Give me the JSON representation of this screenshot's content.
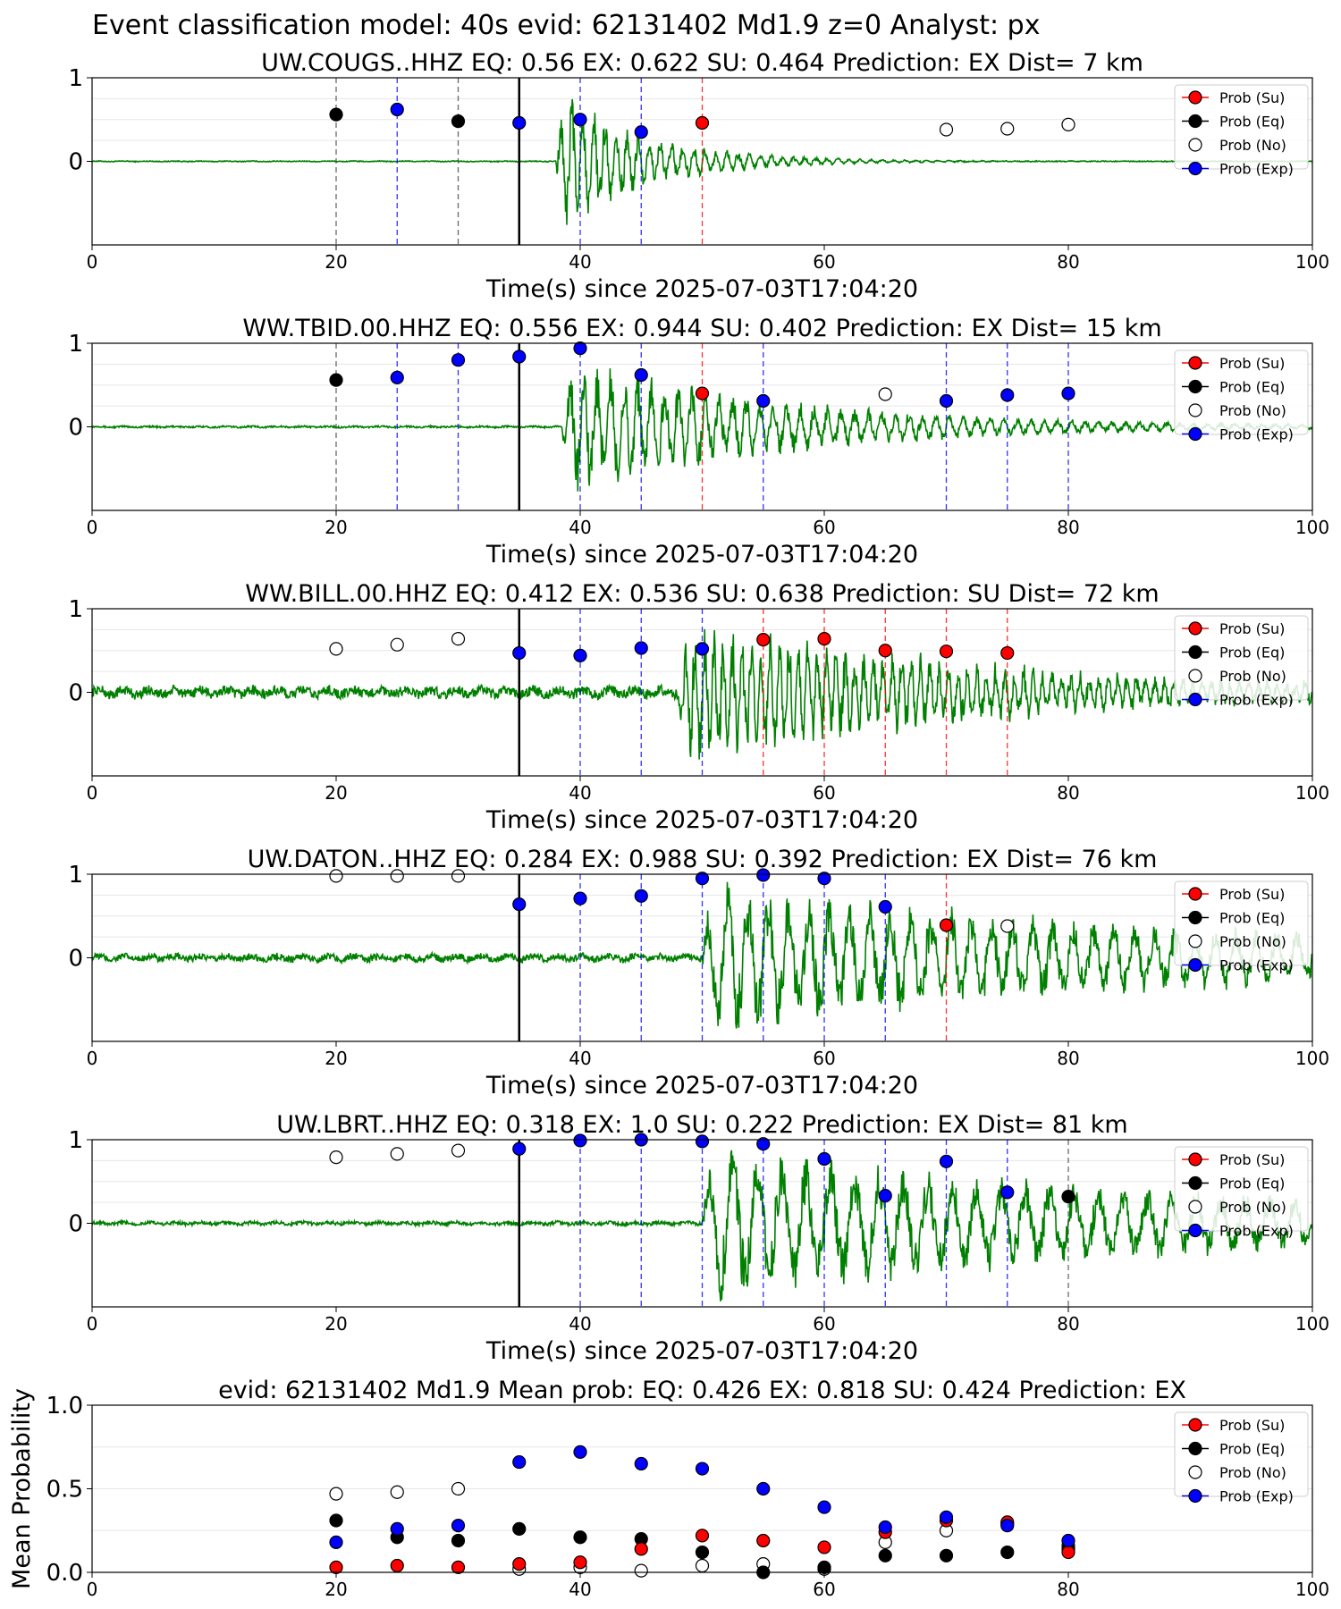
{
  "figure_title": "Event classification model: 40s evid: 62131402 Md1.9 z=0 Analyst: px",
  "legend": [
    {
      "label": "Prob (Su)",
      "color": "#ff0000",
      "edge": "#000000"
    },
    {
      "label": "Prob (Eq)",
      "color": "#000000",
      "edge": "#000000"
    },
    {
      "label": "Prob (No)",
      "color": "#ffffff",
      "edge": "#000000"
    },
    {
      "label": "Prob (Exp)",
      "color": "#0000ff",
      "edge": "#000000"
    }
  ],
  "colors": {
    "trace": "#008000",
    "su": "#ff0000",
    "eq": "#000000",
    "no": "#ffffff",
    "exp": "#0000ff",
    "origin_line": "#000000"
  },
  "chart_data": [
    {
      "type": "scatter",
      "title": "UW.COUGS..HHZ   EQ: 0.56  EX: 0.622  SU: 0.464   Prediction: EX    Dist= 7 km",
      "xlabel": "Time(s) since 2025-07-03T17:04:20",
      "ylabel": "",
      "xlim": [
        0,
        100
      ],
      "ylim": [
        -1,
        1
      ],
      "xticks": [
        "0",
        "20",
        "40",
        "60",
        "80",
        "100"
      ],
      "yticks": [
        "1",
        "0"
      ],
      "origin_time": 35,
      "trace": {
        "onset": 38,
        "peak": 1.0,
        "decay": 7,
        "noise": 0.005,
        "freq": 1.1,
        "end": 100
      },
      "points": [
        {
          "x": 20,
          "y": 0.56,
          "class": "eq"
        },
        {
          "x": 25,
          "y": 0.62,
          "class": "exp"
        },
        {
          "x": 30,
          "y": 0.48,
          "class": "eq"
        },
        {
          "x": 35,
          "y": 0.46,
          "class": "exp"
        },
        {
          "x": 40,
          "y": 0.5,
          "class": "exp"
        },
        {
          "x": 45,
          "y": 0.35,
          "class": "exp"
        },
        {
          "x": 50,
          "y": 0.46,
          "class": "su"
        },
        {
          "x": 70,
          "y": 0.38,
          "class": "no"
        },
        {
          "x": 75,
          "y": 0.39,
          "class": "no"
        },
        {
          "x": 80,
          "y": 0.44,
          "class": "no"
        }
      ]
    },
    {
      "type": "scatter",
      "title": "WW.TBID.00.HHZ   EQ: 0.556  EX: 0.944  SU: 0.402   Prediction: EX    Dist= 15 km",
      "xlabel": "Time(s) since 2025-07-03T17:04:20",
      "ylabel": "",
      "xlim": [
        0,
        100
      ],
      "ylim": [
        -1,
        1
      ],
      "xticks": [
        "0",
        "20",
        "40",
        "60",
        "80",
        "100"
      ],
      "yticks": [
        "1",
        "0"
      ],
      "origin_time": 35,
      "trace": {
        "onset": 38.5,
        "peak": 0.9,
        "decay": 18,
        "noise": 0.01,
        "freq": 0.9,
        "end": 100
      },
      "points": [
        {
          "x": 20,
          "y": 0.56,
          "class": "eq"
        },
        {
          "x": 25,
          "y": 0.59,
          "class": "exp"
        },
        {
          "x": 30,
          "y": 0.8,
          "class": "exp"
        },
        {
          "x": 35,
          "y": 0.84,
          "class": "exp"
        },
        {
          "x": 40,
          "y": 0.94,
          "class": "exp"
        },
        {
          "x": 45,
          "y": 0.62,
          "class": "exp"
        },
        {
          "x": 50,
          "y": 0.4,
          "class": "su"
        },
        {
          "x": 55,
          "y": 0.31,
          "class": "exp"
        },
        {
          "x": 65,
          "y": 0.39,
          "class": "no"
        },
        {
          "x": 70,
          "y": 0.31,
          "class": "exp"
        },
        {
          "x": 75,
          "y": 0.38,
          "class": "exp"
        },
        {
          "x": 80,
          "y": 0.4,
          "class": "exp"
        }
      ]
    },
    {
      "type": "scatter",
      "title": "WW.BILL.00.HHZ   EQ: 0.412  EX: 0.536  SU: 0.638   Prediction: SU    Dist= 72 km",
      "xlabel": "Time(s) since 2025-07-03T17:04:20",
      "ylabel": "",
      "xlim": [
        0,
        100
      ],
      "ylim": [
        -1,
        1
      ],
      "xticks": [
        "0",
        "20",
        "40",
        "60",
        "80",
        "100"
      ],
      "yticks": [
        "1",
        "0"
      ],
      "origin_time": 35,
      "trace": {
        "onset": 48,
        "peak": 0.95,
        "decay": 25,
        "noise": 0.06,
        "freq": 1.3,
        "end": 100
      },
      "points": [
        {
          "x": 20,
          "y": 0.52,
          "class": "no"
        },
        {
          "x": 25,
          "y": 0.57,
          "class": "no"
        },
        {
          "x": 30,
          "y": 0.64,
          "class": "no"
        },
        {
          "x": 35,
          "y": 0.47,
          "class": "exp"
        },
        {
          "x": 40,
          "y": 0.44,
          "class": "exp"
        },
        {
          "x": 45,
          "y": 0.53,
          "class": "exp"
        },
        {
          "x": 50,
          "y": 0.52,
          "class": "exp"
        },
        {
          "x": 55,
          "y": 0.63,
          "class": "su"
        },
        {
          "x": 60,
          "y": 0.64,
          "class": "su"
        },
        {
          "x": 65,
          "y": 0.5,
          "class": "su"
        },
        {
          "x": 70,
          "y": 0.49,
          "class": "su"
        },
        {
          "x": 75,
          "y": 0.47,
          "class": "su"
        }
      ]
    },
    {
      "type": "scatter",
      "title": "UW.DATON..HHZ   EQ: 0.284  EX: 0.988  SU: 0.392   Prediction: EX    Dist= 76 km",
      "xlabel": "Time(s) since 2025-07-03T17:04:20",
      "ylabel": "",
      "xlim": [
        0,
        100
      ],
      "ylim": [
        -1,
        1
      ],
      "xticks": [
        "0",
        "20",
        "40",
        "60",
        "80",
        "100"
      ],
      "yticks": [
        "1",
        "0"
      ],
      "origin_time": 35,
      "trace": {
        "onset": 50,
        "peak": 0.95,
        "decay": 45,
        "noise": 0.04,
        "freq": 0.6,
        "end": 100
      },
      "points": [
        {
          "x": 20,
          "y": 0.98,
          "class": "no"
        },
        {
          "x": 25,
          "y": 0.98,
          "class": "no"
        },
        {
          "x": 30,
          "y": 0.98,
          "class": "no"
        },
        {
          "x": 35,
          "y": 0.64,
          "class": "exp"
        },
        {
          "x": 40,
          "y": 0.71,
          "class": "exp"
        },
        {
          "x": 45,
          "y": 0.74,
          "class": "exp"
        },
        {
          "x": 50,
          "y": 0.95,
          "class": "exp"
        },
        {
          "x": 55,
          "y": 0.99,
          "class": "exp"
        },
        {
          "x": 60,
          "y": 0.95,
          "class": "exp"
        },
        {
          "x": 65,
          "y": 0.61,
          "class": "exp"
        },
        {
          "x": 70,
          "y": 0.39,
          "class": "su"
        },
        {
          "x": 75,
          "y": 0.38,
          "class": "no"
        }
      ]
    },
    {
      "type": "scatter",
      "title": "UW.LBRT..HHZ   EQ: 0.318  EX: 1.0  SU: 0.222   Prediction: EX    Dist= 81 km",
      "xlabel": "Time(s) since 2025-07-03T17:04:20",
      "ylabel": "",
      "xlim": [
        0,
        100
      ],
      "ylim": [
        -1,
        1
      ],
      "xticks": [
        "0",
        "20",
        "40",
        "60",
        "80",
        "100"
      ],
      "yticks": [
        "1",
        "0"
      ],
      "origin_time": 35,
      "trace": {
        "onset": 50,
        "peak": 1.0,
        "decay": 45,
        "noise": 0.02,
        "freq": 0.5,
        "end": 100
      },
      "points": [
        {
          "x": 20,
          "y": 0.79,
          "class": "no"
        },
        {
          "x": 25,
          "y": 0.83,
          "class": "no"
        },
        {
          "x": 30,
          "y": 0.87,
          "class": "no"
        },
        {
          "x": 35,
          "y": 0.89,
          "class": "exp"
        },
        {
          "x": 40,
          "y": 0.99,
          "class": "exp"
        },
        {
          "x": 45,
          "y": 1.0,
          "class": "exp"
        },
        {
          "x": 50,
          "y": 0.98,
          "class": "exp"
        },
        {
          "x": 55,
          "y": 0.95,
          "class": "exp"
        },
        {
          "x": 60,
          "y": 0.77,
          "class": "exp"
        },
        {
          "x": 65,
          "y": 0.33,
          "class": "exp"
        },
        {
          "x": 70,
          "y": 0.74,
          "class": "exp"
        },
        {
          "x": 75,
          "y": 0.37,
          "class": "exp"
        },
        {
          "x": 80,
          "y": 0.32,
          "class": "eq"
        }
      ]
    },
    {
      "type": "scatter",
      "title": "evid: 62131402  Md1.9   Mean prob:    EQ: 0.426  EX: 0.818  SU: 0.424   Prediction: EX",
      "xlabel": "",
      "ylabel": "Mean Probability",
      "xlim": [
        0,
        100
      ],
      "ylim": [
        0,
        1
      ],
      "xticks": [
        "0",
        "20",
        "40",
        "60",
        "80",
        "100"
      ],
      "yticks": [
        "1.0",
        "0.5",
        "0.0"
      ],
      "x": [
        20,
        25,
        30,
        35,
        40,
        45,
        50,
        55,
        60,
        65,
        70,
        75,
        80
      ],
      "series": [
        {
          "name": "Prob (No)",
          "values": [
            0.47,
            0.48,
            0.5,
            0.02,
            0.03,
            0.01,
            0.04,
            0.05,
            0.02,
            0.18,
            0.25,
            0.29,
            0.16
          ]
        },
        {
          "name": "Prob (Eq)",
          "values": [
            0.31,
            0.21,
            0.19,
            0.26,
            0.21,
            0.2,
            0.12,
            0.0,
            0.03,
            0.1,
            0.1,
            0.12,
            0.14
          ]
        },
        {
          "name": "Prob (Su)",
          "values": [
            0.03,
            0.04,
            0.03,
            0.05,
            0.06,
            0.14,
            0.22,
            0.19,
            0.15,
            0.24,
            0.31,
            0.3,
            0.12
          ]
        },
        {
          "name": "Prob (Exp)",
          "values": [
            0.18,
            0.26,
            0.28,
            0.66,
            0.72,
            0.65,
            0.62,
            0.5,
            0.39,
            0.27,
            0.33,
            0.28,
            0.19
          ]
        }
      ]
    }
  ]
}
